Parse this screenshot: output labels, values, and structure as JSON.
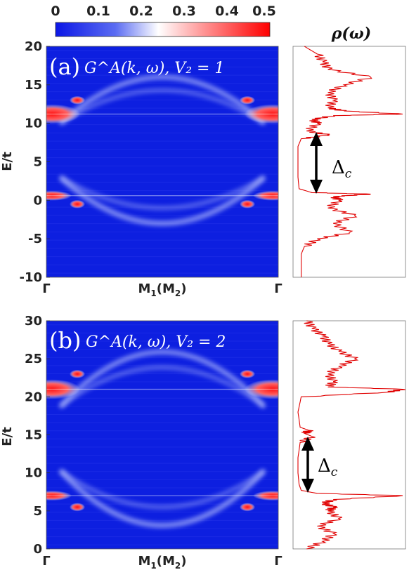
{
  "chart_data": [
    {
      "type": "heatmap",
      "panel": "(a)",
      "title": "G^A(k,ω), V_2 = 1",
      "xlabel": "M₁(M₂)",
      "x_tick_labels": [
        "Γ",
        "M₁(M₂)",
        "Γ"
      ],
      "ylabel": "E/t",
      "ylim": [
        -10,
        20
      ],
      "yticks": [
        -10,
        -5,
        0,
        5,
        10,
        15,
        20
      ],
      "colorbar": {
        "range": [
          0,
          0.5
        ],
        "ticks": [
          "0",
          "0.1",
          "0.2",
          "0.3",
          "0.4",
          "0.5"
        ],
        "colors": [
          "#0b16e6",
          "#ffffff",
          "#ff0000"
        ]
      },
      "features": {
        "strong_flat_bands": [
          11.2,
          0.6
        ],
        "bright_rings_E": [
          16.2,
          13.0,
          12.4,
          -0.5,
          -2.4
        ],
        "dome_center_E": 6.5,
        "dome_height": 10
      }
    },
    {
      "type": "line",
      "panel": "(a) DOS",
      "title": "ρ(ω)",
      "orientation": "vertical",
      "ylim": [
        -10,
        20
      ],
      "annotation": "Δ_c",
      "gap_E": [
        0.6,
        8.5
      ],
      "E": [
        -10,
        -7,
        -6,
        -5,
        -4.2,
        -3,
        -2,
        -1,
        0,
        0.5,
        0.8,
        1.0,
        1.5,
        3,
        5,
        7,
        8,
        8.5,
        9,
        10,
        10.5,
        11,
        11.2,
        11.6,
        12,
        13,
        14,
        15,
        16,
        17,
        18,
        19,
        20
      ],
      "rho": [
        0.05,
        0.05,
        0.08,
        0.2,
        0.5,
        0.35,
        0.55,
        0.3,
        0.4,
        0.35,
        0.7,
        0.15,
        0.03,
        0.02,
        0.02,
        0.02,
        0.05,
        0.3,
        0.1,
        0.2,
        0.15,
        0.35,
        1.0,
        0.45,
        0.3,
        0.35,
        0.3,
        0.45,
        0.7,
        0.3,
        0.25,
        0.2,
        0.08
      ]
    },
    {
      "type": "heatmap",
      "panel": "(b)",
      "title": "G^A(k,ω), V_2 = 2",
      "xlabel": "M₁(M₂)",
      "x_tick_labels": [
        "Γ",
        "M₁(M₂)",
        "Γ"
      ],
      "ylabel": "E/t",
      "ylim": [
        0,
        30
      ],
      "yticks": [
        0,
        5,
        10,
        15,
        20,
        25,
        30
      ],
      "features": {
        "strong_flat_bands": [
          21.0,
          7.0
        ],
        "bright_rings_E": [
          25.5,
          23.0,
          22.4,
          5.5,
          2.8
        ],
        "dome_center_E": 14.5,
        "dome_height": 12
      }
    },
    {
      "type": "line",
      "panel": "(b) DOS",
      "title": "ρ(ω)",
      "orientation": "vertical",
      "ylim": [
        0,
        30
      ],
      "annotation": "Δ_c",
      "gap_E": [
        7.0,
        14.8
      ],
      "E": [
        0,
        1,
        2,
        3,
        4,
        5,
        5.5,
        6,
        6.5,
        7,
        7.3,
        7.7,
        8.5,
        10,
        12,
        14,
        14.8,
        15.2,
        15.6,
        16,
        18,
        20,
        20.6,
        21,
        21.3,
        22,
        23,
        24,
        25,
        26,
        27,
        28,
        29,
        30
      ],
      "rho": [
        0.1,
        0.25,
        0.35,
        0.2,
        0.4,
        0.3,
        0.35,
        0.25,
        0.35,
        1.0,
        0.2,
        0.05,
        0.03,
        0.02,
        0.02,
        0.04,
        0.15,
        0.08,
        0.12,
        0.04,
        0.02,
        0.05,
        0.85,
        1.0,
        0.3,
        0.35,
        0.3,
        0.4,
        0.55,
        0.4,
        0.3,
        0.25,
        0.15,
        0.1
      ]
    }
  ],
  "labels": {
    "colorbar_ticks": [
      "0",
      "0.1",
      "0.2",
      "0.3",
      "0.4",
      "0.5"
    ],
    "rho_title": "ρ(ω)",
    "panel_a_label": "(a)",
    "panel_a_formula": "G^A(k, ω), V₂ = 1",
    "panel_b_label": "(b)",
    "panel_b_formula": "G^A(k, ω), V₂ = 2",
    "ylabel": "E/t",
    "gamma": "Γ",
    "mlabel_main": "M",
    "mlabel_sub1": "1",
    "mlabel_mid": "(M",
    "mlabel_sub2": "2",
    "mlabel_end": ")",
    "delta_main": "Δ",
    "delta_sub": "c"
  }
}
